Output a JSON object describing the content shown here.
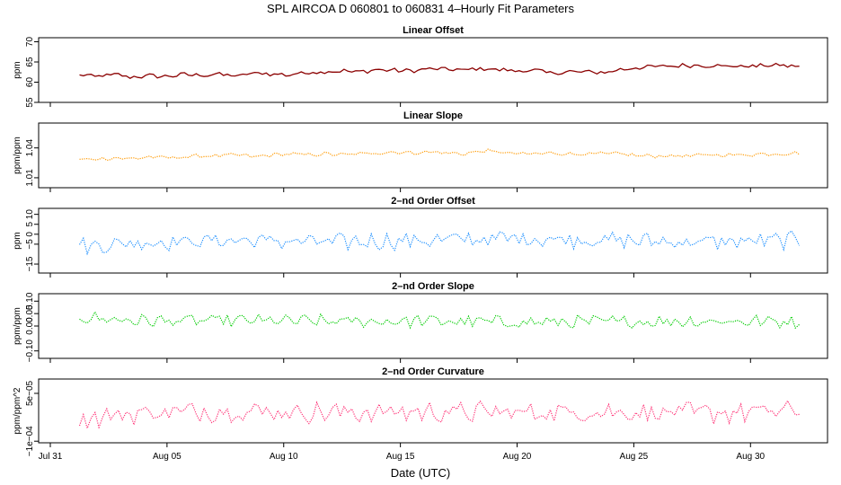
{
  "title": "SPL   AIRCOA D   060801 to 060831   4–Hourly Fit Parameters",
  "x_axis": {
    "label": "Date (UTC)",
    "ticks": [
      {
        "day": 0,
        "label": "Jul 31"
      },
      {
        "day": 5,
        "label": "Aug 05"
      },
      {
        "day": 10,
        "label": "Aug 10"
      },
      {
        "day": 15,
        "label": "Aug 15"
      },
      {
        "day": 20,
        "label": "Aug 20"
      },
      {
        "day": 25,
        "label": "Aug 25"
      },
      {
        "day": 30,
        "label": "Aug 30"
      }
    ],
    "range": [
      -0.5,
      33.3
    ]
  },
  "chart_data": [
    {
      "type": "line",
      "title": "Linear Offset",
      "ylabel": "ppm",
      "ylim": [
        55,
        71
      ],
      "yticks": [
        55,
        60,
        65,
        70
      ],
      "ytick_labels": [
        "55",
        "60",
        "65",
        "70"
      ],
      "color": "#8b0000",
      "style": "solid",
      "x_start": 1.25,
      "x_step": 0.1667,
      "x_end": 32.1,
      "anchors": [
        [
          1.25,
          61.8
        ],
        [
          2.0,
          61.4
        ],
        [
          2.8,
          61.9
        ],
        [
          3.5,
          61.2
        ],
        [
          4.2,
          61.6
        ],
        [
          5.0,
          61.4
        ],
        [
          5.7,
          61.9
        ],
        [
          6.5,
          61.7
        ],
        [
          7.2,
          62.0
        ],
        [
          8.0,
          61.5
        ],
        [
          8.8,
          62.3
        ],
        [
          9.5,
          62.0
        ],
        [
          10.2,
          61.8
        ],
        [
          11.0,
          62.4
        ],
        [
          11.8,
          62.6
        ],
        [
          12.5,
          62.8
        ],
        [
          13.2,
          62.5
        ],
        [
          14.0,
          63.1
        ],
        [
          14.8,
          62.9
        ],
        [
          15.5,
          62.8
        ],
        [
          16.2,
          63.3
        ],
        [
          17.0,
          63.2
        ],
        [
          17.7,
          63.0
        ],
        [
          18.5,
          63.4
        ],
        [
          19.2,
          63.1
        ],
        [
          20.0,
          62.8
        ],
        [
          20.8,
          62.9
        ],
        [
          21.5,
          62.2
        ],
        [
          22.2,
          62.6
        ],
        [
          23.0,
          62.5
        ],
        [
          23.8,
          62.4
        ],
        [
          24.5,
          63.2
        ],
        [
          25.2,
          63.6
        ],
        [
          26.0,
          63.9
        ],
        [
          26.7,
          64.0
        ],
        [
          27.5,
          64.2
        ],
        [
          28.2,
          64.1
        ],
        [
          29.0,
          64.0
        ],
        [
          29.7,
          63.9
        ],
        [
          30.5,
          64.1
        ],
        [
          31.2,
          64.2
        ],
        [
          32.0,
          63.9
        ]
      ],
      "noise": 0.45
    },
    {
      "type": "line",
      "title": "Linear Slope",
      "ylabel": "ppm/ppm",
      "ylim": [
        1.0,
        1.065
      ],
      "yticks": [
        1.01,
        1.04
      ],
      "ytick_labels": [
        "1.01",
        "1.04"
      ],
      "color": "#ff9900",
      "style": "dotted",
      "x_start": 1.25,
      "x_step": 0.1667,
      "x_end": 32.1,
      "anchors": [
        [
          1.25,
          1.028
        ],
        [
          2.0,
          1.029
        ],
        [
          2.8,
          1.03
        ],
        [
          3.5,
          1.029
        ],
        [
          4.2,
          1.031
        ],
        [
          5.0,
          1.03
        ],
        [
          5.8,
          1.031
        ],
        [
          6.5,
          1.032
        ],
        [
          7.3,
          1.032
        ],
        [
          8.0,
          1.033
        ],
        [
          8.8,
          1.031
        ],
        [
          9.5,
          1.033
        ],
        [
          10.2,
          1.034
        ],
        [
          11.0,
          1.033
        ],
        [
          11.8,
          1.034
        ],
        [
          12.5,
          1.033
        ],
        [
          13.2,
          1.034
        ],
        [
          14.0,
          1.035
        ],
        [
          14.8,
          1.036
        ],
        [
          15.5,
          1.035
        ],
        [
          16.2,
          1.036
        ],
        [
          17.0,
          1.035
        ],
        [
          17.7,
          1.034
        ],
        [
          18.5,
          1.037
        ],
        [
          19.2,
          1.036
        ],
        [
          20.0,
          1.034
        ],
        [
          20.8,
          1.034
        ],
        [
          21.5,
          1.035
        ],
        [
          22.2,
          1.034
        ],
        [
          23.0,
          1.034
        ],
        [
          23.8,
          1.034
        ],
        [
          24.5,
          1.034
        ],
        [
          25.2,
          1.032
        ],
        [
          26.0,
          1.032
        ],
        [
          26.7,
          1.032
        ],
        [
          27.5,
          1.032
        ],
        [
          28.2,
          1.033
        ],
        [
          29.0,
          1.033
        ],
        [
          29.7,
          1.033
        ],
        [
          30.5,
          1.034
        ],
        [
          31.2,
          1.034
        ],
        [
          32.0,
          1.035
        ]
      ],
      "noise": 0.0016
    },
    {
      "type": "line",
      "title": "2–nd Order Offset",
      "ylabel": "ppm",
      "ylim": [
        -19.5,
        13
      ],
      "yticks": [
        -15,
        -5,
        0,
        5,
        10
      ],
      "ytick_labels": [
        "−15",
        "−5",
        "0",
        "5",
        "10"
      ],
      "color": "#1e90ff",
      "style": "dotted",
      "x_start": 1.25,
      "x_step": 0.1667,
      "x_end": 32.1,
      "anchors": [
        [
          1.25,
          -6
        ],
        [
          4,
          -4
        ],
        [
          8,
          -3
        ],
        [
          12,
          -4
        ],
        [
          16,
          -3
        ],
        [
          20,
          -2
        ],
        [
          24,
          -3
        ],
        [
          28,
          -4
        ],
        [
          32,
          -3
        ]
      ],
      "noise": 3.6
    },
    {
      "type": "line",
      "title": "2–nd Order Slope",
      "ylabel": "ppm/ppm",
      "ylim": [
        -0.13,
        0.13
      ],
      "yticks": [
        -0.1,
        0.0,
        0.05,
        0.1
      ],
      "ytick_labels": [
        "−0.10",
        "0.00",
        "0.05",
        "0.10"
      ],
      "color": "#00cc00",
      "style": "dotted",
      "x_start": 1.25,
      "x_step": 0.1667,
      "x_end": 32.1,
      "anchors": [
        [
          1.25,
          0.035
        ],
        [
          4,
          0.02
        ],
        [
          8,
          0.022
        ],
        [
          12,
          0.018
        ],
        [
          16,
          0.02
        ],
        [
          20,
          0.015
        ],
        [
          24,
          0.017
        ],
        [
          28,
          0.02
        ],
        [
          32,
          0.018
        ]
      ],
      "noise": 0.022
    },
    {
      "type": "line",
      "title": "2–nd Order Curvature",
      "ylabel": "ppm/ppm^2",
      "ylim": [
        -0.000105,
        9.5e-05
      ],
      "yticks": [
        -0.0001,
        5e-05
      ],
      "ytick_labels": [
        "−1e−04",
        "5e−05"
      ],
      "color": "#ff3377",
      "style": "dotted",
      "x_start": 1.25,
      "x_step": 0.1667,
      "x_end": 32.1,
      "anchors": [
        [
          1.25,
          -3e-05
        ],
        [
          4,
          -1e-05
        ],
        [
          8,
          -5e-06
        ],
        [
          12,
          -1e-05
        ],
        [
          16,
          -8e-06
        ],
        [
          20,
          -1e-05
        ],
        [
          24,
          -8e-06
        ],
        [
          28,
          -1.2e-05
        ],
        [
          32,
          -5e-06
        ]
      ],
      "noise": 2.8e-05
    }
  ]
}
